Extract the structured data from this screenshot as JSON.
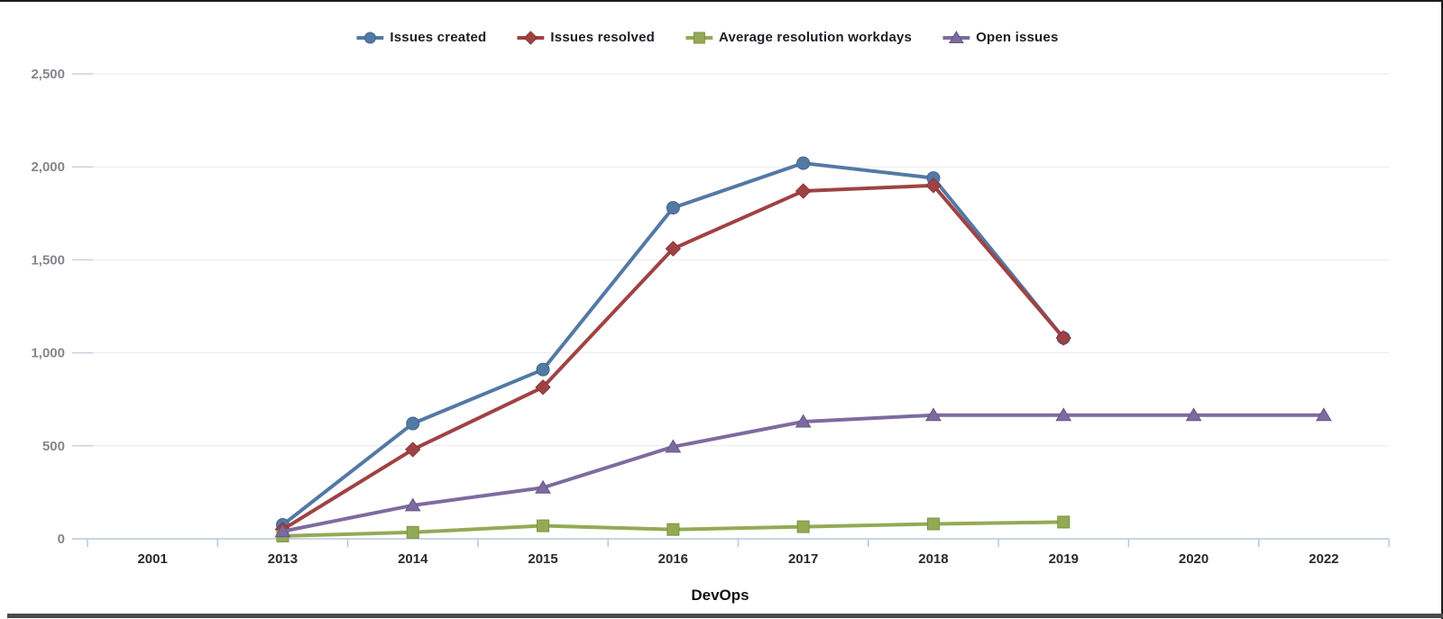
{
  "frame": {
    "top_border_color": "#1c1c1c",
    "right_border_color": "#1c1c1c",
    "bottom_bar_color": "#4b4b4b"
  },
  "chart_data": {
    "type": "line",
    "title": "",
    "xlabel": "DevOps",
    "ylabel": "",
    "categories": [
      "2001",
      "2013",
      "2014",
      "2015",
      "2016",
      "2017",
      "2018",
      "2019",
      "2020",
      "2022"
    ],
    "y_ticks": [
      {
        "value": 0,
        "label": "0"
      },
      {
        "value": 500,
        "label": "500"
      },
      {
        "value": 1000,
        "label": "1,000"
      },
      {
        "value": 1500,
        "label": "1,500"
      },
      {
        "value": 2000,
        "label": "2,000"
      },
      {
        "value": 2500,
        "label": "2,500"
      }
    ],
    "ylim": [
      0,
      2500
    ],
    "grid": true,
    "legend_position": "top",
    "axis_color": "#b9c6d8",
    "grid_color": "#e9eaec",
    "grid_tick_color": "#c6d2e2",
    "series": [
      {
        "name": "Issues created",
        "color": "#5379a5",
        "edge_color": "#44648c",
        "marker": "circle",
        "values": [
          null,
          75,
          620,
          910,
          1780,
          2020,
          1940,
          1080,
          null,
          null
        ]
      },
      {
        "name": "Issues resolved",
        "color": "#a04243",
        "edge_color": "#853637",
        "marker": "diamond",
        "values": [
          null,
          50,
          480,
          815,
          1560,
          1870,
          1900,
          1080,
          null,
          null
        ]
      },
      {
        "name": "Average resolution workdays",
        "color": "#93aa55",
        "edge_color": "#7c9144",
        "marker": "square",
        "values": [
          null,
          15,
          35,
          70,
          50,
          65,
          80,
          90,
          null,
          null
        ]
      },
      {
        "name": "Open issues",
        "color": "#7d6ba0",
        "edge_color": "#675687",
        "marker": "triangle",
        "values": [
          null,
          40,
          180,
          275,
          495,
          630,
          665,
          665,
          665,
          665
        ]
      }
    ]
  }
}
